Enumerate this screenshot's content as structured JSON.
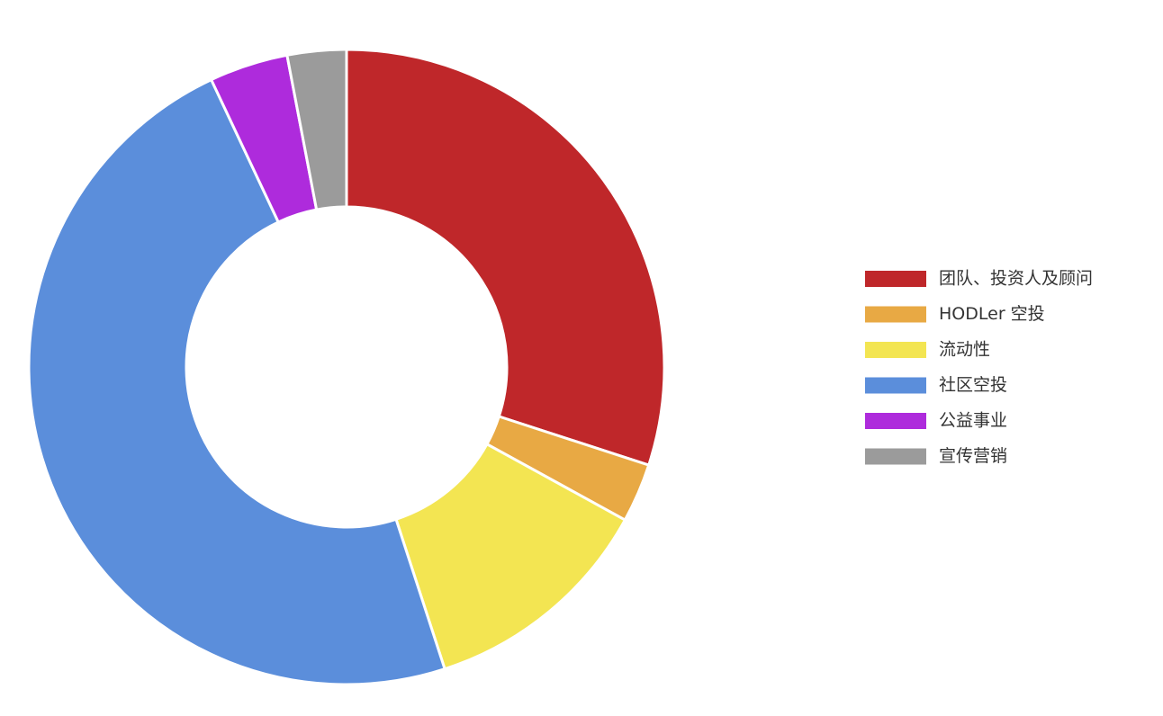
{
  "chart_data": {
    "type": "pie",
    "categories": [
      "团队、投资人及顾问",
      "HODLer 空投",
      "流动性",
      "社区空投",
      "公益事业",
      "宣传营销"
    ],
    "values": [
      30,
      3,
      12,
      48,
      4,
      3
    ],
    "colors": [
      "#bf272a",
      "#e8a944",
      "#f3e552",
      "#5b8edb",
      "#ae2bdc",
      "#9b9b9b"
    ],
    "legend": "right"
  }
}
